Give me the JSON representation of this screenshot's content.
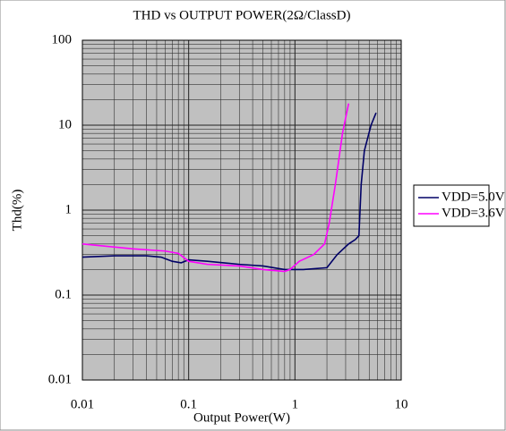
{
  "chart_data": {
    "type": "line",
    "title": "THD vs OUTPUT POWER(2Ω/ClassD)",
    "x_label": "Output Power(W)",
    "y_label": "Thd(%)",
    "xlog": true,
    "ylog": true,
    "grid": true,
    "legend": "right",
    "xlim": [
      0.01,
      10
    ],
    "xticks": [
      0.01,
      0.1,
      1,
      10
    ],
    "ylim": [
      0.01,
      100
    ],
    "yticks": [
      0.01,
      0.1,
      1,
      10,
      100
    ],
    "series": [
      {
        "name": "VDD=5.0V",
        "color": "#000066",
        "x": [
          0.01,
          0.02,
          0.04,
          0.055,
          0.07,
          0.085,
          0.1,
          0.15,
          0.3,
          0.5,
          0.8,
          1.2,
          2,
          2.5,
          3.2,
          3.7,
          4.0,
          4.2,
          4.5,
          5.2,
          5.8
        ],
        "values": [
          0.28,
          0.29,
          0.29,
          0.28,
          0.25,
          0.24,
          0.26,
          0.25,
          0.23,
          0.22,
          0.2,
          0.2,
          0.21,
          0.3,
          0.4,
          0.45,
          0.5,
          2,
          5,
          10,
          14
        ]
      },
      {
        "name": "VDD=3.6V",
        "color": "#ff00ff",
        "x": [
          0.01,
          0.03,
          0.06,
          0.08,
          0.1,
          0.15,
          0.3,
          0.5,
          0.8,
          0.9,
          1.1,
          1.5,
          1.9,
          2.1,
          2.4,
          2.8,
          3.2
        ],
        "values": [
          0.4,
          0.35,
          0.33,
          0.31,
          0.25,
          0.23,
          0.22,
          0.2,
          0.19,
          0.2,
          0.25,
          0.3,
          0.4,
          0.7,
          2,
          8,
          18
        ]
      }
    ]
  }
}
